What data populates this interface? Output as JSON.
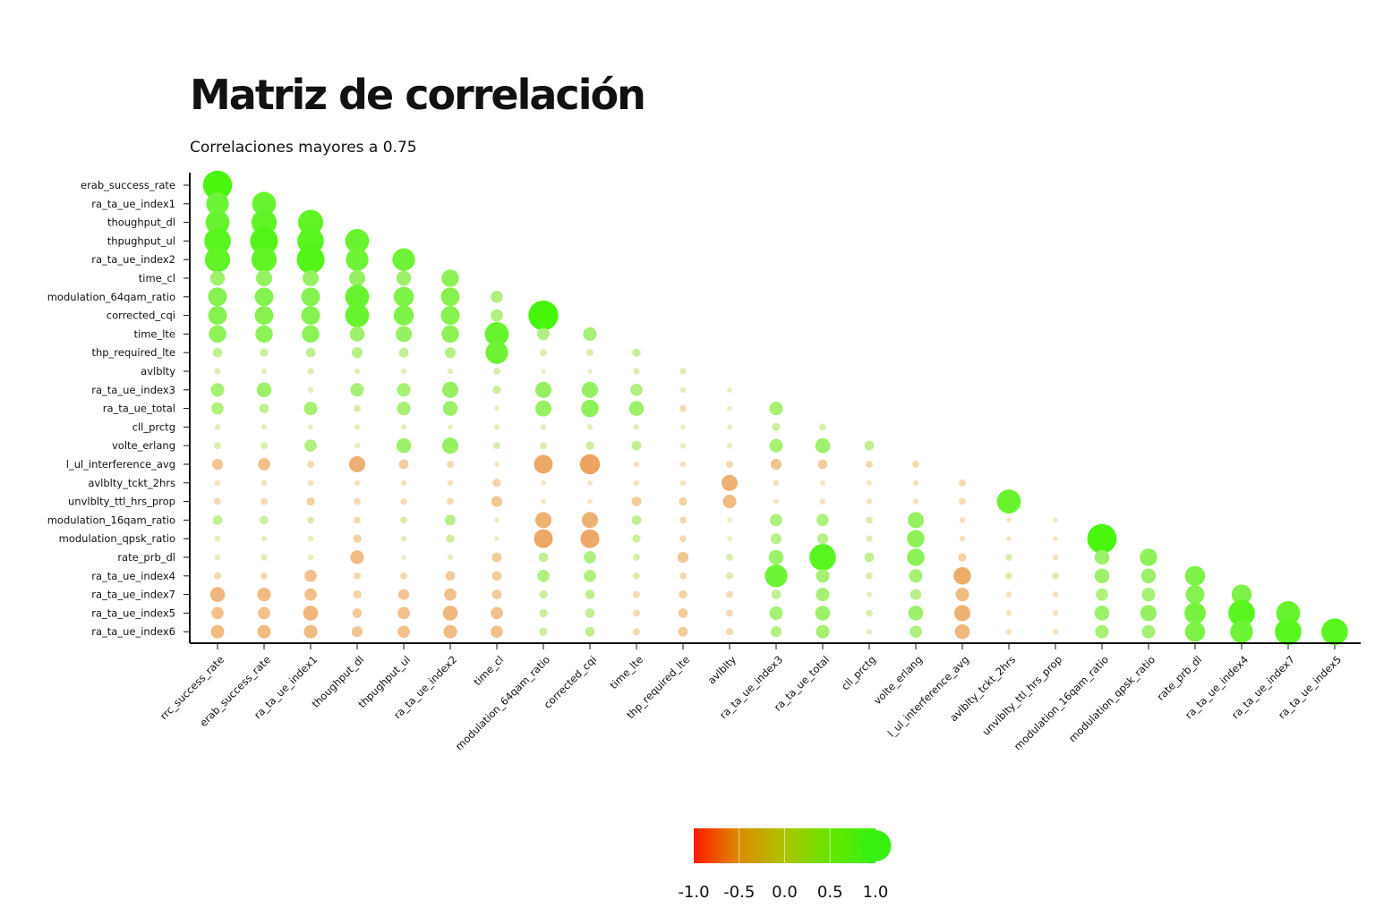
{
  "chart_data": {
    "type": "heatmap",
    "title": "Matriz de correlación",
    "subtitle": "Correlaciones mayores a 0.75",
    "x_labels": [
      "rrc_success_rate",
      "erab_success_rate",
      "ra_ta_ue_index1",
      "thoughput_dl",
      "thpughput_ul",
      "ra_ta_ue_index2",
      "time_cl",
      "modulation_64qam_ratio",
      "corrected_cqi",
      "time_lte",
      "thp_required_lte",
      "avlblty",
      "ra_ta_ue_index3",
      "ra_ta_ue_total",
      "cll_prctg",
      "volte_erlang",
      "l_ul_interference_avg",
      "avlblty_tckt_2hrs",
      "unvlblty_ttl_hrs_prop",
      "modulation_16qam_ratio",
      "modulation_qpsk_ratio",
      "rate_prb_dl",
      "ra_ta_ue_index4",
      "ra_ta_ue_index7",
      "ra_ta_ue_index5"
    ],
    "y_labels": [
      "erab_success_rate",
      "ra_ta_ue_index1",
      "thoughput_dl",
      "thpughput_ul",
      "ra_ta_ue_index2",
      "time_cl",
      "modulation_64qam_ratio",
      "corrected_cqi",
      "time_lte",
      "thp_required_lte",
      "avlblty",
      "ra_ta_ue_index3",
      "ra_ta_ue_total",
      "cll_prctg",
      "volte_erlang",
      "l_ul_interference_avg",
      "avlblty_tckt_2hrs",
      "unvlblty_ttl_hrs_prop",
      "modulation_16qam_ratio",
      "modulation_qpsk_ratio",
      "rate_prb_dl",
      "ra_ta_ue_index4",
      "ra_ta_ue_index7",
      "ra_ta_ue_index5",
      "ra_ta_ue_index6"
    ],
    "values": [
      [
        0.95
      ],
      [
        0.7,
        0.75
      ],
      [
        0.75,
        0.8,
        0.8
      ],
      [
        0.85,
        0.9,
        0.85,
        0.75
      ],
      [
        0.8,
        0.8,
        0.9,
        0.7,
        0.7
      ],
      [
        0.4,
        0.45,
        0.45,
        0.45,
        0.4,
        0.5
      ],
      [
        0.55,
        0.55,
        0.55,
        0.75,
        0.6,
        0.55,
        0.3
      ],
      [
        0.55,
        0.55,
        0.55,
        0.75,
        0.6,
        0.55,
        0.3,
        0.98
      ],
      [
        0.5,
        0.5,
        0.5,
        0.4,
        0.45,
        0.5,
        0.75,
        0.3,
        0.35
      ],
      [
        0.2,
        0.15,
        0.2,
        0.25,
        0.2,
        0.25,
        0.7,
        0.1,
        0.1,
        0.15
      ],
      [
        0.08,
        0.05,
        0.08,
        0.05,
        0.05,
        0.05,
        0.1,
        0.02,
        0.02,
        0.08,
        0.08
      ],
      [
        0.35,
        0.4,
        0.05,
        0.35,
        0.35,
        0.45,
        0.15,
        0.45,
        0.45,
        0.3,
        0.05,
        0.03
      ],
      [
        0.3,
        0.2,
        0.35,
        0.1,
        0.35,
        0.4,
        0.03,
        0.45,
        0.5,
        0.4,
        -0.1,
        0.03,
        0.35
      ],
      [
        0.05,
        0.05,
        0.03,
        0.05,
        0.05,
        0.03,
        0.05,
        0.05,
        0.05,
        0.05,
        0.03,
        0.03,
        0.15,
        0.1
      ],
      [
        0.1,
        0.1,
        0.3,
        0.05,
        0.4,
        0.45,
        0.1,
        0.1,
        0.15,
        0.2,
        0.05,
        0.05,
        0.35,
        0.4,
        0.2
      ],
      [
        -0.25,
        -0.3,
        -0.1,
        -0.45,
        -0.2,
        -0.1,
        -0.03,
        -0.55,
        -0.6,
        -0.05,
        -0.05,
        -0.1,
        -0.25,
        -0.2,
        -0.1,
        -0.1
      ],
      [
        -0.05,
        -0.05,
        -0.05,
        -0.05,
        -0.05,
        -0.05,
        -0.15,
        -0.03,
        -0.03,
        -0.05,
        -0.05,
        -0.45,
        -0.05,
        -0.03,
        -0.03,
        -0.05,
        -0.1
      ],
      [
        -0.1,
        -0.1,
        -0.15,
        -0.1,
        -0.08,
        -0.1,
        -0.25,
        -0.03,
        -0.03,
        -0.2,
        -0.15,
        -0.35,
        -0.03,
        -0.05,
        -0.05,
        -0.05,
        -0.1,
        0.75
      ],
      [
        0.2,
        0.15,
        0.1,
        -0.1,
        0.1,
        0.25,
        0.03,
        -0.45,
        -0.45,
        0.2,
        -0.1,
        0.03,
        0.3,
        0.3,
        0.1,
        0.45,
        -0.05,
        -0.03,
        -0.03
      ],
      [
        0.05,
        0.05,
        0.05,
        -0.15,
        0.05,
        0.15,
        0.02,
        -0.55,
        -0.55,
        0.15,
        -0.1,
        0.03,
        0.25,
        0.25,
        0.08,
        0.5,
        -0.05,
        -0.03,
        -0.03,
        0.96
      ],
      [
        0.05,
        0.08,
        0.05,
        -0.35,
        0.02,
        0.05,
        -0.2,
        0.2,
        0.3,
        0.1,
        -0.25,
        0.1,
        0.4,
        0.85,
        0.2,
        0.5,
        -0.15,
        0.1,
        -0.05,
        0.4,
        0.5
      ],
      [
        -0.1,
        -0.1,
        -0.3,
        -0.1,
        -0.1,
        -0.2,
        -0.2,
        0.3,
        0.3,
        0.1,
        -0.1,
        0.1,
        0.7,
        0.35,
        0.1,
        0.35,
        -0.5,
        0.1,
        0.1,
        0.4,
        0.4,
        0.6
      ],
      [
        -0.4,
        -0.35,
        -0.3,
        -0.15,
        -0.25,
        -0.3,
        -0.2,
        0.15,
        0.2,
        -0.1,
        -0.15,
        -0.1,
        0.2,
        0.35,
        0.05,
        0.25,
        -0.35,
        -0.05,
        -0.05,
        0.3,
        0.35,
        0.55,
        0.6
      ],
      [
        -0.3,
        -0.3,
        -0.4,
        -0.2,
        -0.3,
        -0.4,
        -0.3,
        0.15,
        0.2,
        -0.1,
        -0.2,
        -0.1,
        0.35,
        0.4,
        0.1,
        0.4,
        -0.45,
        -0.05,
        -0.05,
        0.4,
        0.45,
        0.65,
        0.85,
        0.75
      ],
      [
        -0.35,
        -0.35,
        -0.35,
        -0.25,
        -0.3,
        -0.35,
        -0.3,
        0.15,
        0.2,
        -0.1,
        -0.2,
        -0.1,
        0.25,
        0.35,
        0.05,
        0.3,
        -0.4,
        -0.05,
        -0.05,
        0.35,
        0.35,
        0.6,
        0.7,
        0.85,
        0.85
      ]
    ],
    "colorbar": {
      "ticks": [
        "-1.0",
        "-0.5",
        "0.0",
        "0.5",
        "1.0"
      ],
      "colors": [
        "#ff1a00",
        "#dc8c00",
        "#aec400",
        "#66e600",
        "#38f010"
      ],
      "range": [
        -1,
        1
      ]
    },
    "legend_placement": "bottom-center",
    "grid": false
  }
}
